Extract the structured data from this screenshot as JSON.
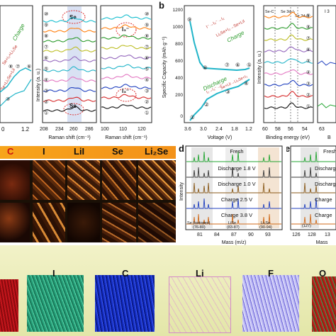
{
  "panel_a": {
    "leftplot": {
      "charge_label": "Charge",
      "label_top": "Se+I₂+Li₂Se",
      "label_mid": "Se+Li₂Se+LiI",
      "xticks": [
        "0",
        "1.2"
      ],
      "circles": [
        "⑨",
        "⑧",
        "⑦",
        "⑥",
        "⑤",
        "④",
        "③",
        "②",
        "①"
      ]
    },
    "raman1": {
      "xlabel": "Raman shift (cm⁻¹)",
      "ylabel": "Intensity (a. u.)",
      "xticks": [
        "208",
        "234",
        "260",
        "286"
      ],
      "peak_top": "Se",
      "peak_bottom": "Se",
      "circles": [
        "⑩",
        "⑨",
        "⑧",
        "⑦",
        "⑥",
        "⑤",
        "④",
        "③",
        "②",
        "①"
      ]
    },
    "raman2": {
      "xlabel": "Raman shift (cm⁻¹)",
      "xticks": [
        "100",
        "110",
        "120"
      ],
      "peak_top": "I₃⁻",
      "peak_bottom": "I₃⁻",
      "circles": [
        "⑩",
        "⑨",
        "⑧",
        "⑦",
        "⑥",
        "⑤",
        "④",
        "③",
        "②",
        "①"
      ]
    }
  },
  "panel_b": {
    "letter": "b",
    "ylabel": "Specific Capacity (mAh g⁻¹)",
    "xlabel": "Voltage (V)",
    "yticks": [
      "1200",
      "1000",
      "800",
      "600",
      "400",
      "200",
      "0"
    ],
    "xticks": [
      "3.6",
      "3.0",
      "2.4",
      "1.8",
      "1.2"
    ],
    "charge_label": "Charge",
    "discharge_label": "Discharge",
    "reaction_top": "I⁻→I₃⁻→I₂",
    "reaction_top2": "Li₂Se+I₂→Se+LiI",
    "reaction_bottom": "I₂→I₃⁻→I⁻",
    "reaction_bottom2": "Se+LiI→Li₂Se+I₂",
    "circles_top": [
      "⑨",
      "⑧",
      "⑦",
      "⑥",
      "⑤"
    ],
    "circles_bottom": [
      "④",
      "③",
      "②",
      "①"
    ]
  },
  "xps": {
    "ylabel": "Intensity (a. u.)",
    "xlabel": "Binding energy (eV)",
    "xticks": [
      "60",
      "58",
      "56",
      "54"
    ],
    "peak_labels": [
      "Se-C",
      "Se 3d₅/₂",
      "Se 3d₃/₂"
    ],
    "circles": [
      "⑨",
      "⑧",
      "⑦",
      "⑥",
      "⑤",
      "④",
      "③",
      "②",
      "①"
    ],
    "right_xtick": "63",
    "right_label": "B",
    "right_top": "I 3"
  },
  "tof_band": {
    "labels": [
      "C",
      "I",
      "LiI",
      "Se",
      "Li₂Se"
    ]
  },
  "panel_d": {
    "letter": "d",
    "ylabel": "Intensity",
    "xlabel": "Mass (m/z)",
    "traces": [
      "Fresh",
      "Discharge 1.8 V",
      "Discharge 1.0 V",
      "Charge 2.5 V",
      "Charge 3.8 V"
    ],
    "xticks": [
      "81",
      "84",
      "87",
      "90",
      "93"
    ],
    "ann1a": "Se (isotopes)",
    "ann1b": "(76-80)",
    "ann2a": "LiSe",
    "ann2b": "(83-87)",
    "ann3a": "Li₂Se",
    "ann3b": "(90-94)"
  },
  "panel_e": {
    "letter": "e",
    "traces": [
      "Fresh",
      "Discharge",
      "Discharge",
      "Charge",
      "Charge"
    ],
    "xticks": [
      "126",
      "128",
      "13"
    ],
    "ann": "(127)",
    "xlabel": "Mass"
  },
  "volumes": {
    "labels": [
      "I",
      "C",
      "Li",
      "F",
      "O"
    ]
  },
  "colors": {
    "trace_blue": "#1f3fbf",
    "trace_cyan": "#22b5c9",
    "trace_green": "#22a531",
    "orange_band": "#f5a21b",
    "volume_bg": "#ecedb5"
  }
}
